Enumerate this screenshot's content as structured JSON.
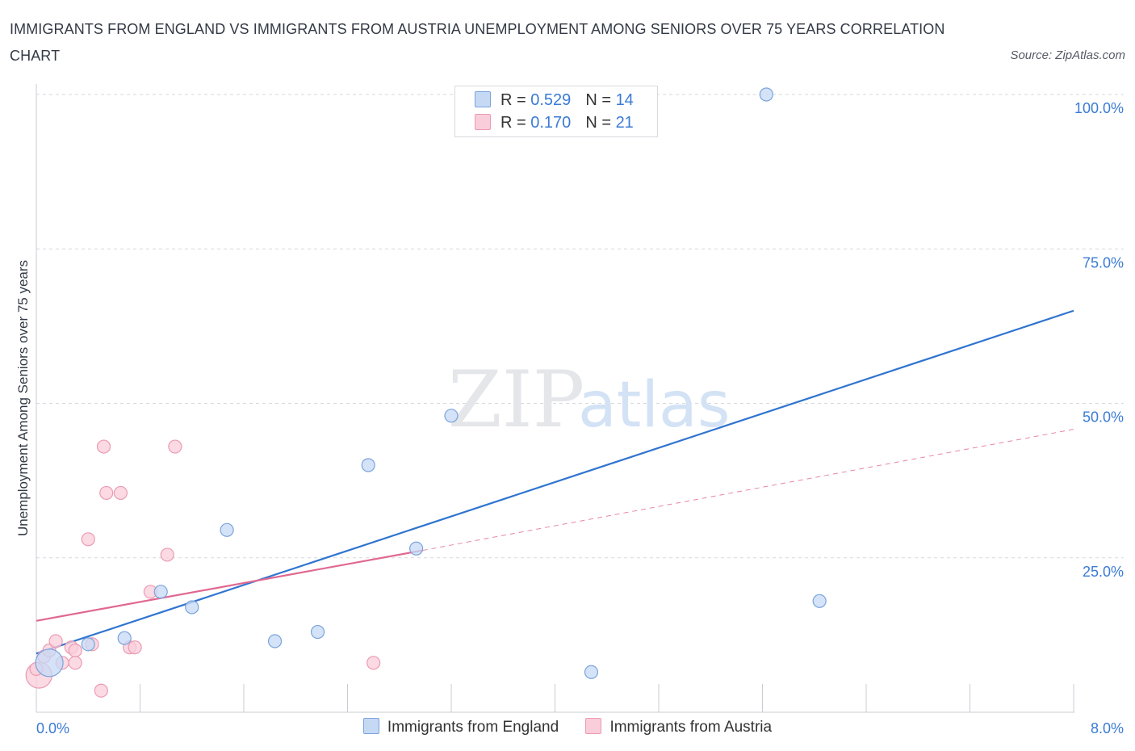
{
  "title": "IMMIGRANTS FROM ENGLAND VS IMMIGRANTS FROM AUSTRIA UNEMPLOYMENT AMONG SENIORS OVER 75 YEARS CORRELATION CHART",
  "source": "Source: ZipAtlas.com",
  "watermark": {
    "zip": "ZIP",
    "atlas": "atlas"
  },
  "legend": {
    "england": {
      "r_label": "R =",
      "r_value": "0.529",
      "n_label": "N =",
      "n_value": "14"
    },
    "austria": {
      "r_label": "R =",
      "r_value": "0.170",
      "n_label": "N =",
      "n_value": "21"
    }
  },
  "colors": {
    "england_fill": "#c5d9f5",
    "england_stroke": "#7aa3db",
    "england_line": "#2f74d0",
    "austria_fill": "#f9cdd9",
    "austria_stroke": "#eb9ab2",
    "austria_line": "#e06890",
    "grid": "#d5d8de",
    "axis_text": "#3a7bd5"
  },
  "chart_data": {
    "type": "scatter",
    "title": "IMMIGRANTS FROM ENGLAND VS IMMIGRANTS FROM AUSTRIA UNEMPLOYMENT AMONG SENIORS OVER 75 YEARS CORRELATION CHART",
    "xlabel": "",
    "ylabel": "Unemployment Among Seniors over 75 years",
    "xlim": [
      0,
      8
    ],
    "ylim": [
      0,
      100
    ],
    "x_tick_labels": [
      "0.0%",
      "8.0%"
    ],
    "y_tick_labels": [
      "100.0%",
      "75.0%",
      "50.0%",
      "25.0%"
    ],
    "y_ticks": [
      100,
      75,
      50,
      25
    ],
    "legend_position": "top-center",
    "series": [
      {
        "name": "Immigrants from England",
        "r": 0.529,
        "n": 14,
        "points": [
          {
            "x": 0.1,
            "y": 8.0,
            "size": "large"
          },
          {
            "x": 0.4,
            "y": 11.0
          },
          {
            "x": 0.68,
            "y": 12.0
          },
          {
            "x": 0.96,
            "y": 19.5
          },
          {
            "x": 1.2,
            "y": 17.0
          },
          {
            "x": 1.47,
            "y": 29.5
          },
          {
            "x": 1.84,
            "y": 11.5
          },
          {
            "x": 2.17,
            "y": 13.0
          },
          {
            "x": 2.56,
            "y": 40.0
          },
          {
            "x": 2.93,
            "y": 26.5
          },
          {
            "x": 3.2,
            "y": 48.0
          },
          {
            "x": 4.28,
            "y": 6.5
          },
          {
            "x": 5.63,
            "y": 100.0
          },
          {
            "x": 6.04,
            "y": 18.0
          }
        ],
        "trend": {
          "x": [
            0.0,
            8.0
          ],
          "y": [
            9.5,
            65.0
          ],
          "style": "solid"
        }
      },
      {
        "name": "Immigrants from Austria",
        "r": 0.17,
        "n": 21,
        "points": [
          {
            "x": 0.02,
            "y": 6.0,
            "size": "large"
          },
          {
            "x": 0.06,
            "y": 9.0
          },
          {
            "x": 0.1,
            "y": 10.0
          },
          {
            "x": 0.15,
            "y": 11.5
          },
          {
            "x": 0.2,
            "y": 8.0
          },
          {
            "x": 0.27,
            "y": 10.5
          },
          {
            "x": 0.3,
            "y": 10.0
          },
          {
            "x": 0.3,
            "y": 8.0
          },
          {
            "x": 0.4,
            "y": 28.0
          },
          {
            "x": 0.43,
            "y": 11.0
          },
          {
            "x": 0.5,
            "y": 3.5
          },
          {
            "x": 0.52,
            "y": 43.0
          },
          {
            "x": 0.54,
            "y": 35.5
          },
          {
            "x": 0.65,
            "y": 35.5
          },
          {
            "x": 0.72,
            "y": 10.5
          },
          {
            "x": 0.76,
            "y": 10.5
          },
          {
            "x": 0.88,
            "y": 19.5
          },
          {
            "x": 1.01,
            "y": 25.5
          },
          {
            "x": 1.07,
            "y": 43.0
          },
          {
            "x": 2.6,
            "y": 8.0
          },
          {
            "x": 0.0,
            "y": 7.0
          }
        ],
        "trend": {
          "x": [
            0.0,
            2.98,
            8.0
          ],
          "y": [
            14.8,
            26.2,
            45.8
          ],
          "style": "solid-then-dashed"
        }
      }
    ]
  },
  "bottom_legend": {
    "england_label": "Immigrants from England",
    "austria_label": "Immigrants from Austria"
  }
}
